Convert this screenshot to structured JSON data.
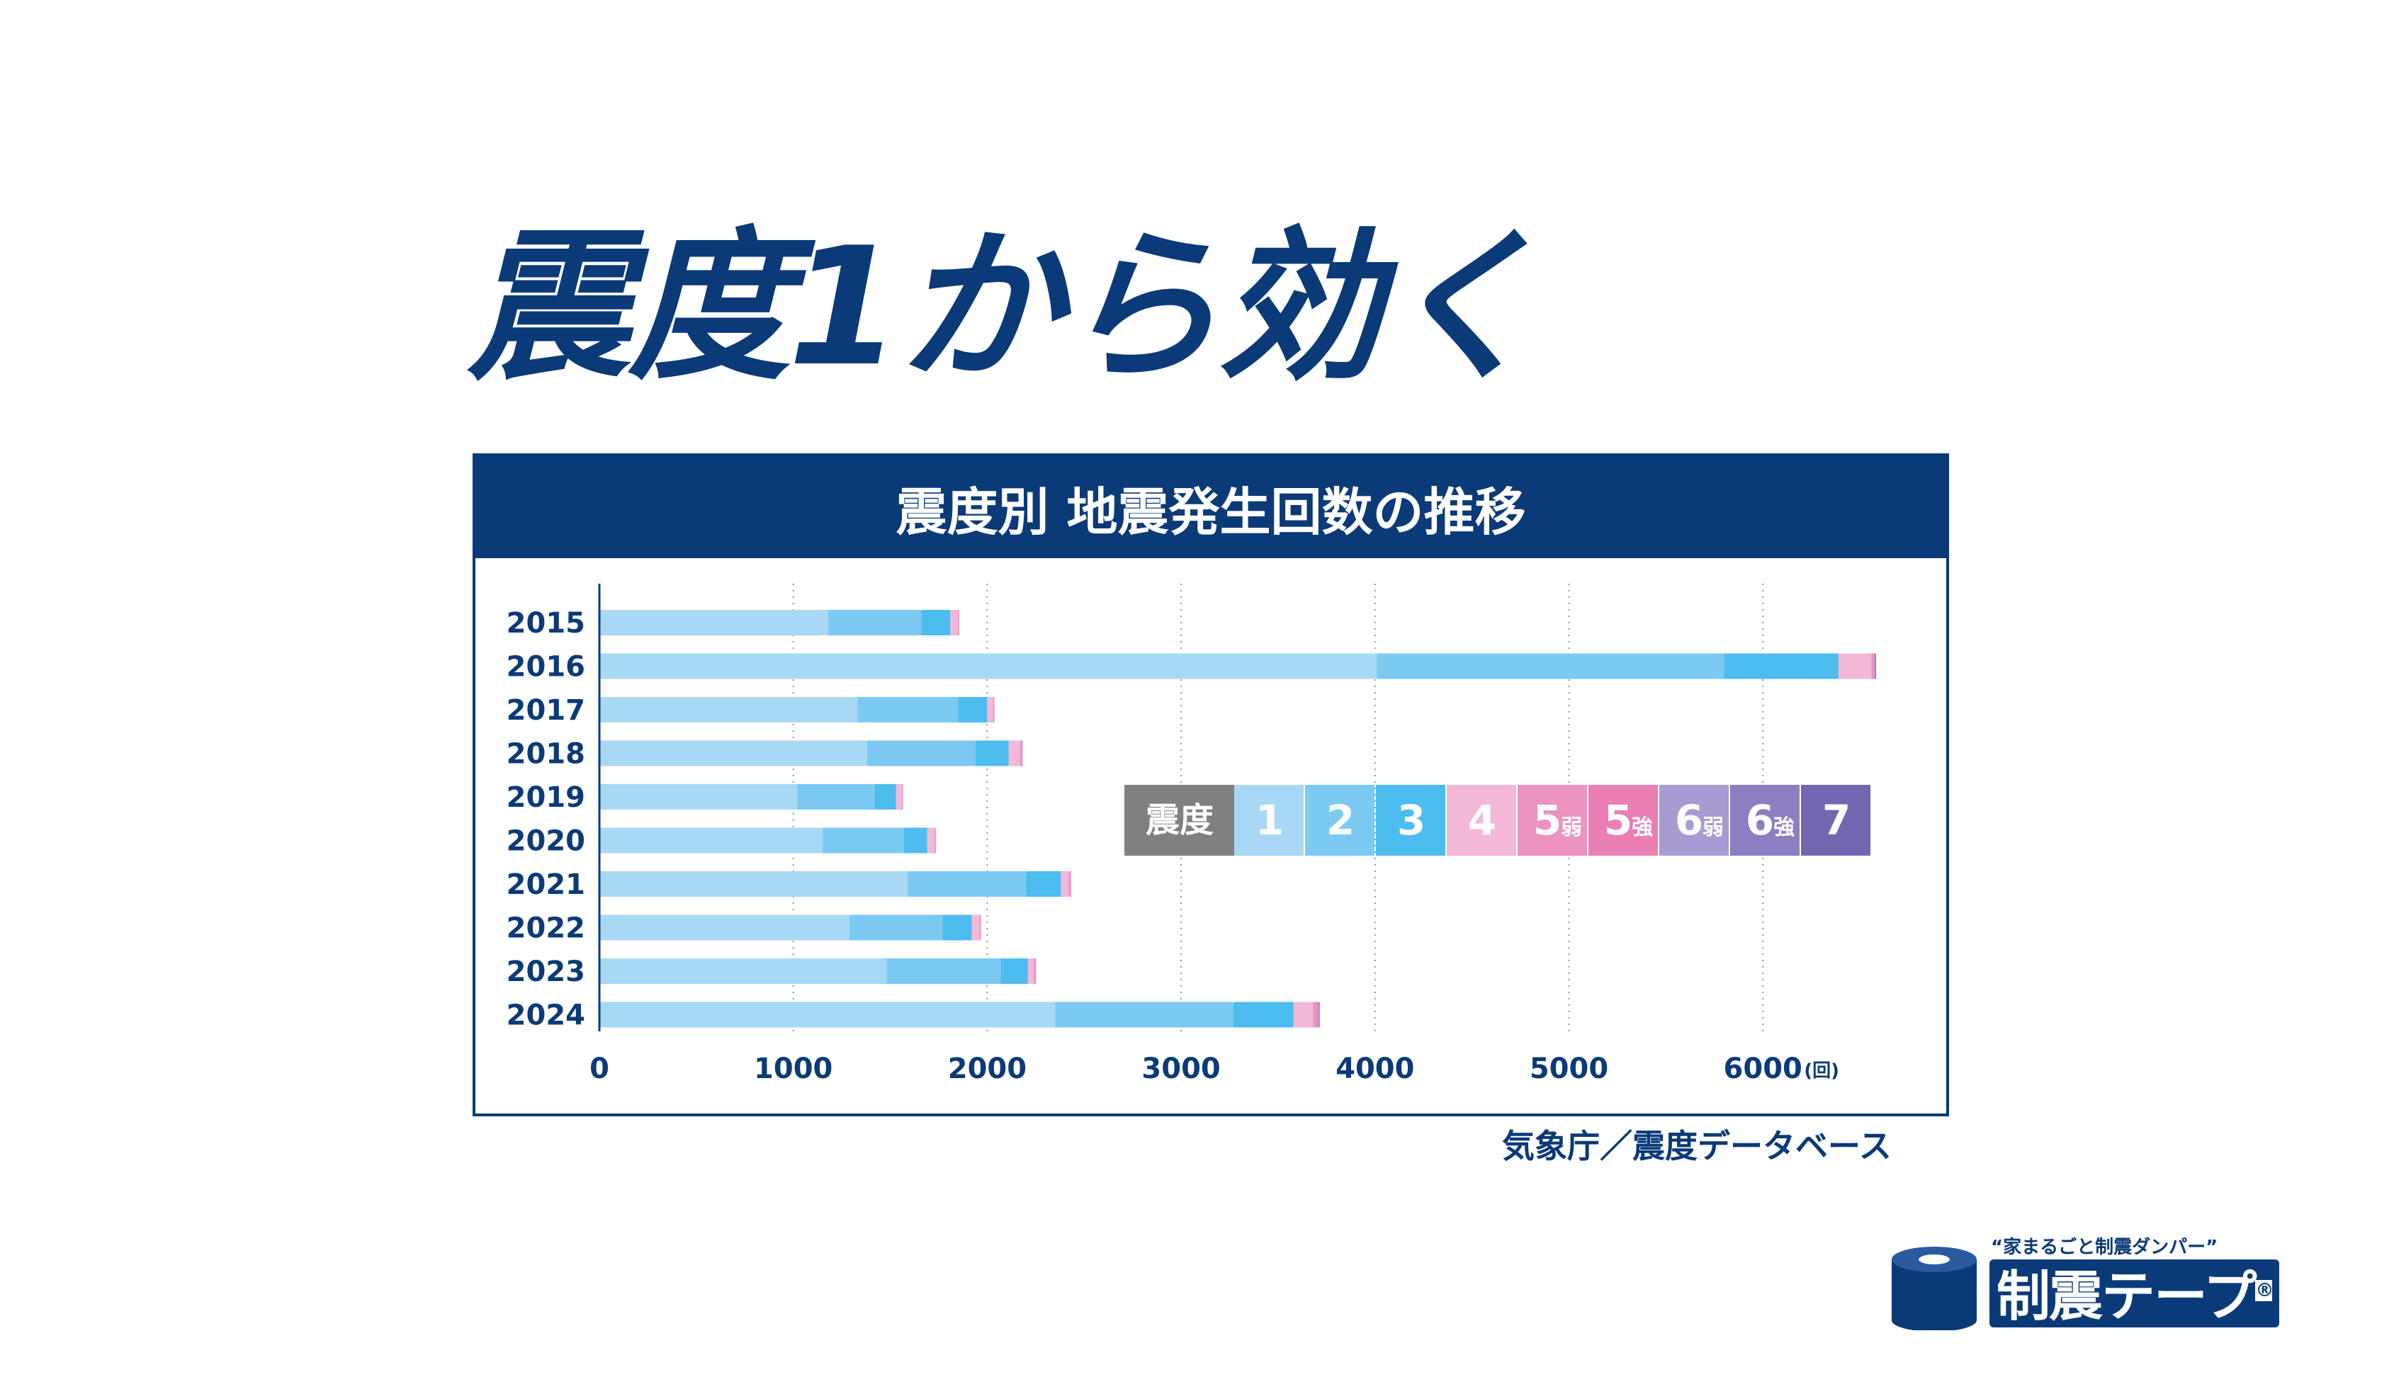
{
  "headline": "震度1から効く",
  "chart_data": {
    "type": "bar",
    "orientation": "horizontal",
    "stacked": true,
    "title": "震度別 地震発生回数の推移",
    "categories": [
      "2015",
      "2016",
      "2017",
      "2018",
      "2019",
      "2020",
      "2021",
      "2022",
      "2023",
      "2024"
    ],
    "series": [
      {
        "name": "1",
        "color": "#a8d8f4",
        "values": [
          1180,
          4010,
          1330,
          1380,
          1020,
          1150,
          1590,
          1290,
          1480,
          2350
        ]
      },
      {
        "name": "2",
        "color": "#7ccaf2",
        "values": [
          480,
          1790,
          520,
          560,
          400,
          420,
          610,
          480,
          590,
          920
        ]
      },
      {
        "name": "3",
        "color": "#4cbdee",
        "values": [
          150,
          590,
          150,
          170,
          110,
          120,
          180,
          150,
          140,
          310
        ]
      },
      {
        "name": "4",
        "color": "#f3b8d6",
        "values": [
          40,
          170,
          30,
          60,
          30,
          40,
          40,
          40,
          30,
          100
        ]
      },
      {
        "name": "5弱",
        "color": "#ec93bf",
        "values": [
          5,
          10,
          5,
          10,
          5,
          5,
          10,
          5,
          10,
          20
        ]
      },
      {
        "name": "5強",
        "color": "#e97fb3",
        "values": [
          1,
          5,
          2,
          2,
          1,
          1,
          2,
          2,
          2,
          8
        ]
      },
      {
        "name": "6弱",
        "color": "#a99bd1",
        "values": [
          0,
          5,
          0,
          1,
          0,
          0,
          0,
          1,
          0,
          5
        ]
      },
      {
        "name": "6強",
        "color": "#8d7ec1",
        "values": [
          0,
          2,
          0,
          0,
          0,
          0,
          0,
          0,
          0,
          2
        ]
      },
      {
        "name": "7",
        "color": "#7467b1",
        "values": [
          0,
          2,
          0,
          0,
          0,
          0,
          0,
          0,
          0,
          1
        ]
      }
    ],
    "xlim": [
      0,
      6600
    ],
    "xticks": [
      "0",
      "1000",
      "2000",
      "3000",
      "4000",
      "5000",
      "6000"
    ],
    "xtick_values": [
      0,
      1000,
      2000,
      3000,
      4000,
      5000,
      6000
    ],
    "unit": "(回)",
    "grid": "vertical dotted",
    "legend_title": "震度",
    "legend_title_color": "#808080",
    "legend_placement": "right-middle"
  },
  "source": "気象庁／震度データベース",
  "logo": {
    "tagline": "“家まるごと制震ダンパー”",
    "name": "制震テープ",
    "mark": "®"
  }
}
